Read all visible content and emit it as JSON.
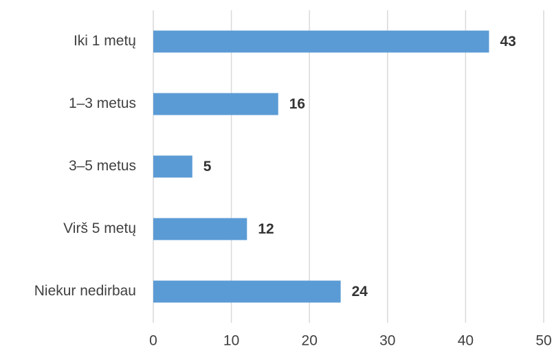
{
  "chart_data": {
    "type": "bar",
    "orientation": "horizontal",
    "categories": [
      "Iki 1 metų",
      "1–3 metus",
      "3–5 metus",
      "Virš 5 metų",
      "Niekur nedirbau"
    ],
    "values": [
      43,
      16,
      5,
      12,
      24
    ],
    "color": "#5b9bd5",
    "xlim": [
      0,
      50
    ],
    "xticks": [
      0,
      10,
      20,
      30,
      40,
      50
    ],
    "grid": true
  }
}
